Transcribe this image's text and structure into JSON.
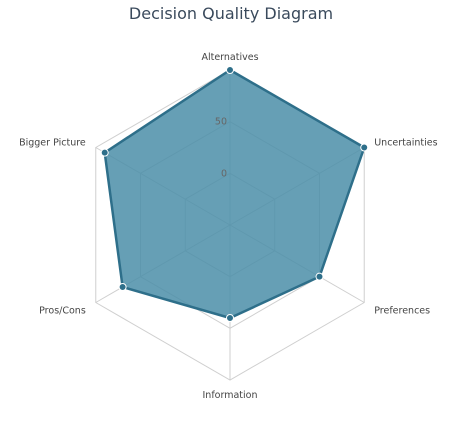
{
  "chart_data": {
    "type": "radar",
    "title": "Decision Quality Diagram",
    "axes": [
      "Alternatives",
      "Uncertainties",
      "Preferences",
      "Information",
      "Pros/Cons",
      "Bigger Picture"
    ],
    "rlim": [
      -50,
      100
    ],
    "ticks": [
      {
        "value": 0,
        "label": "0"
      },
      {
        "value": 50,
        "label": "50"
      }
    ],
    "series": [
      {
        "values": [
          100,
          100,
          50,
          40,
          70,
          90
        ]
      }
    ],
    "grid": true,
    "legend": "none",
    "colors": {
      "fill": "#4b8ea8",
      "stroke": "#2e6f8a",
      "marker": "#2e6f8a",
      "grid": "#cfcfcf",
      "title": "#3a4a5c"
    }
  }
}
